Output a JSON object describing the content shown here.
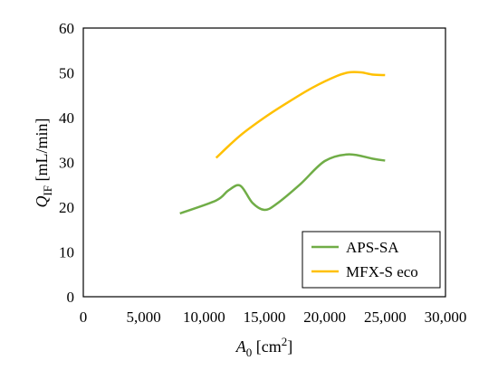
{
  "chart_data": {
    "type": "line",
    "xlim": [
      0,
      30000
    ],
    "ylim": [
      0,
      60
    ],
    "x_ticks": [
      "0",
      "5,000",
      "10,000",
      "15,000",
      "20,000",
      "25,000",
      "30,000"
    ],
    "y_ticks": [
      "0",
      "10",
      "20",
      "30",
      "40",
      "50",
      "60"
    ],
    "xlabel": {
      "symbol": "A",
      "sub": "0",
      "unit": " [cm",
      "sup": "2",
      "end": "]"
    },
    "ylabel": {
      "symbol": "Q",
      "sub": "IF",
      "unit": " [mL/min]"
    },
    "grid": false,
    "legend": "bottom-right",
    "series": [
      {
        "name": "APS-SA",
        "color": "#70ad47",
        "x": [
          8000,
          11000,
          12000,
          13000,
          14000,
          15000,
          16000,
          18000,
          20000,
          22000,
          24000,
          25000
        ],
        "y": [
          18.6,
          21.5,
          23.7,
          24.8,
          21.0,
          19.4,
          20.7,
          25.2,
          30.3,
          31.8,
          30.8,
          30.4
        ]
      },
      {
        "name": "MFX-S eco",
        "color": "#ffc000",
        "x": [
          11000,
          13000,
          15000,
          17000,
          19000,
          21000,
          22000,
          23000,
          24000,
          25000
        ],
        "y": [
          31.0,
          36.0,
          40.0,
          43.5,
          46.7,
          49.3,
          50.1,
          50.1,
          49.6,
          49.5
        ]
      }
    ]
  }
}
